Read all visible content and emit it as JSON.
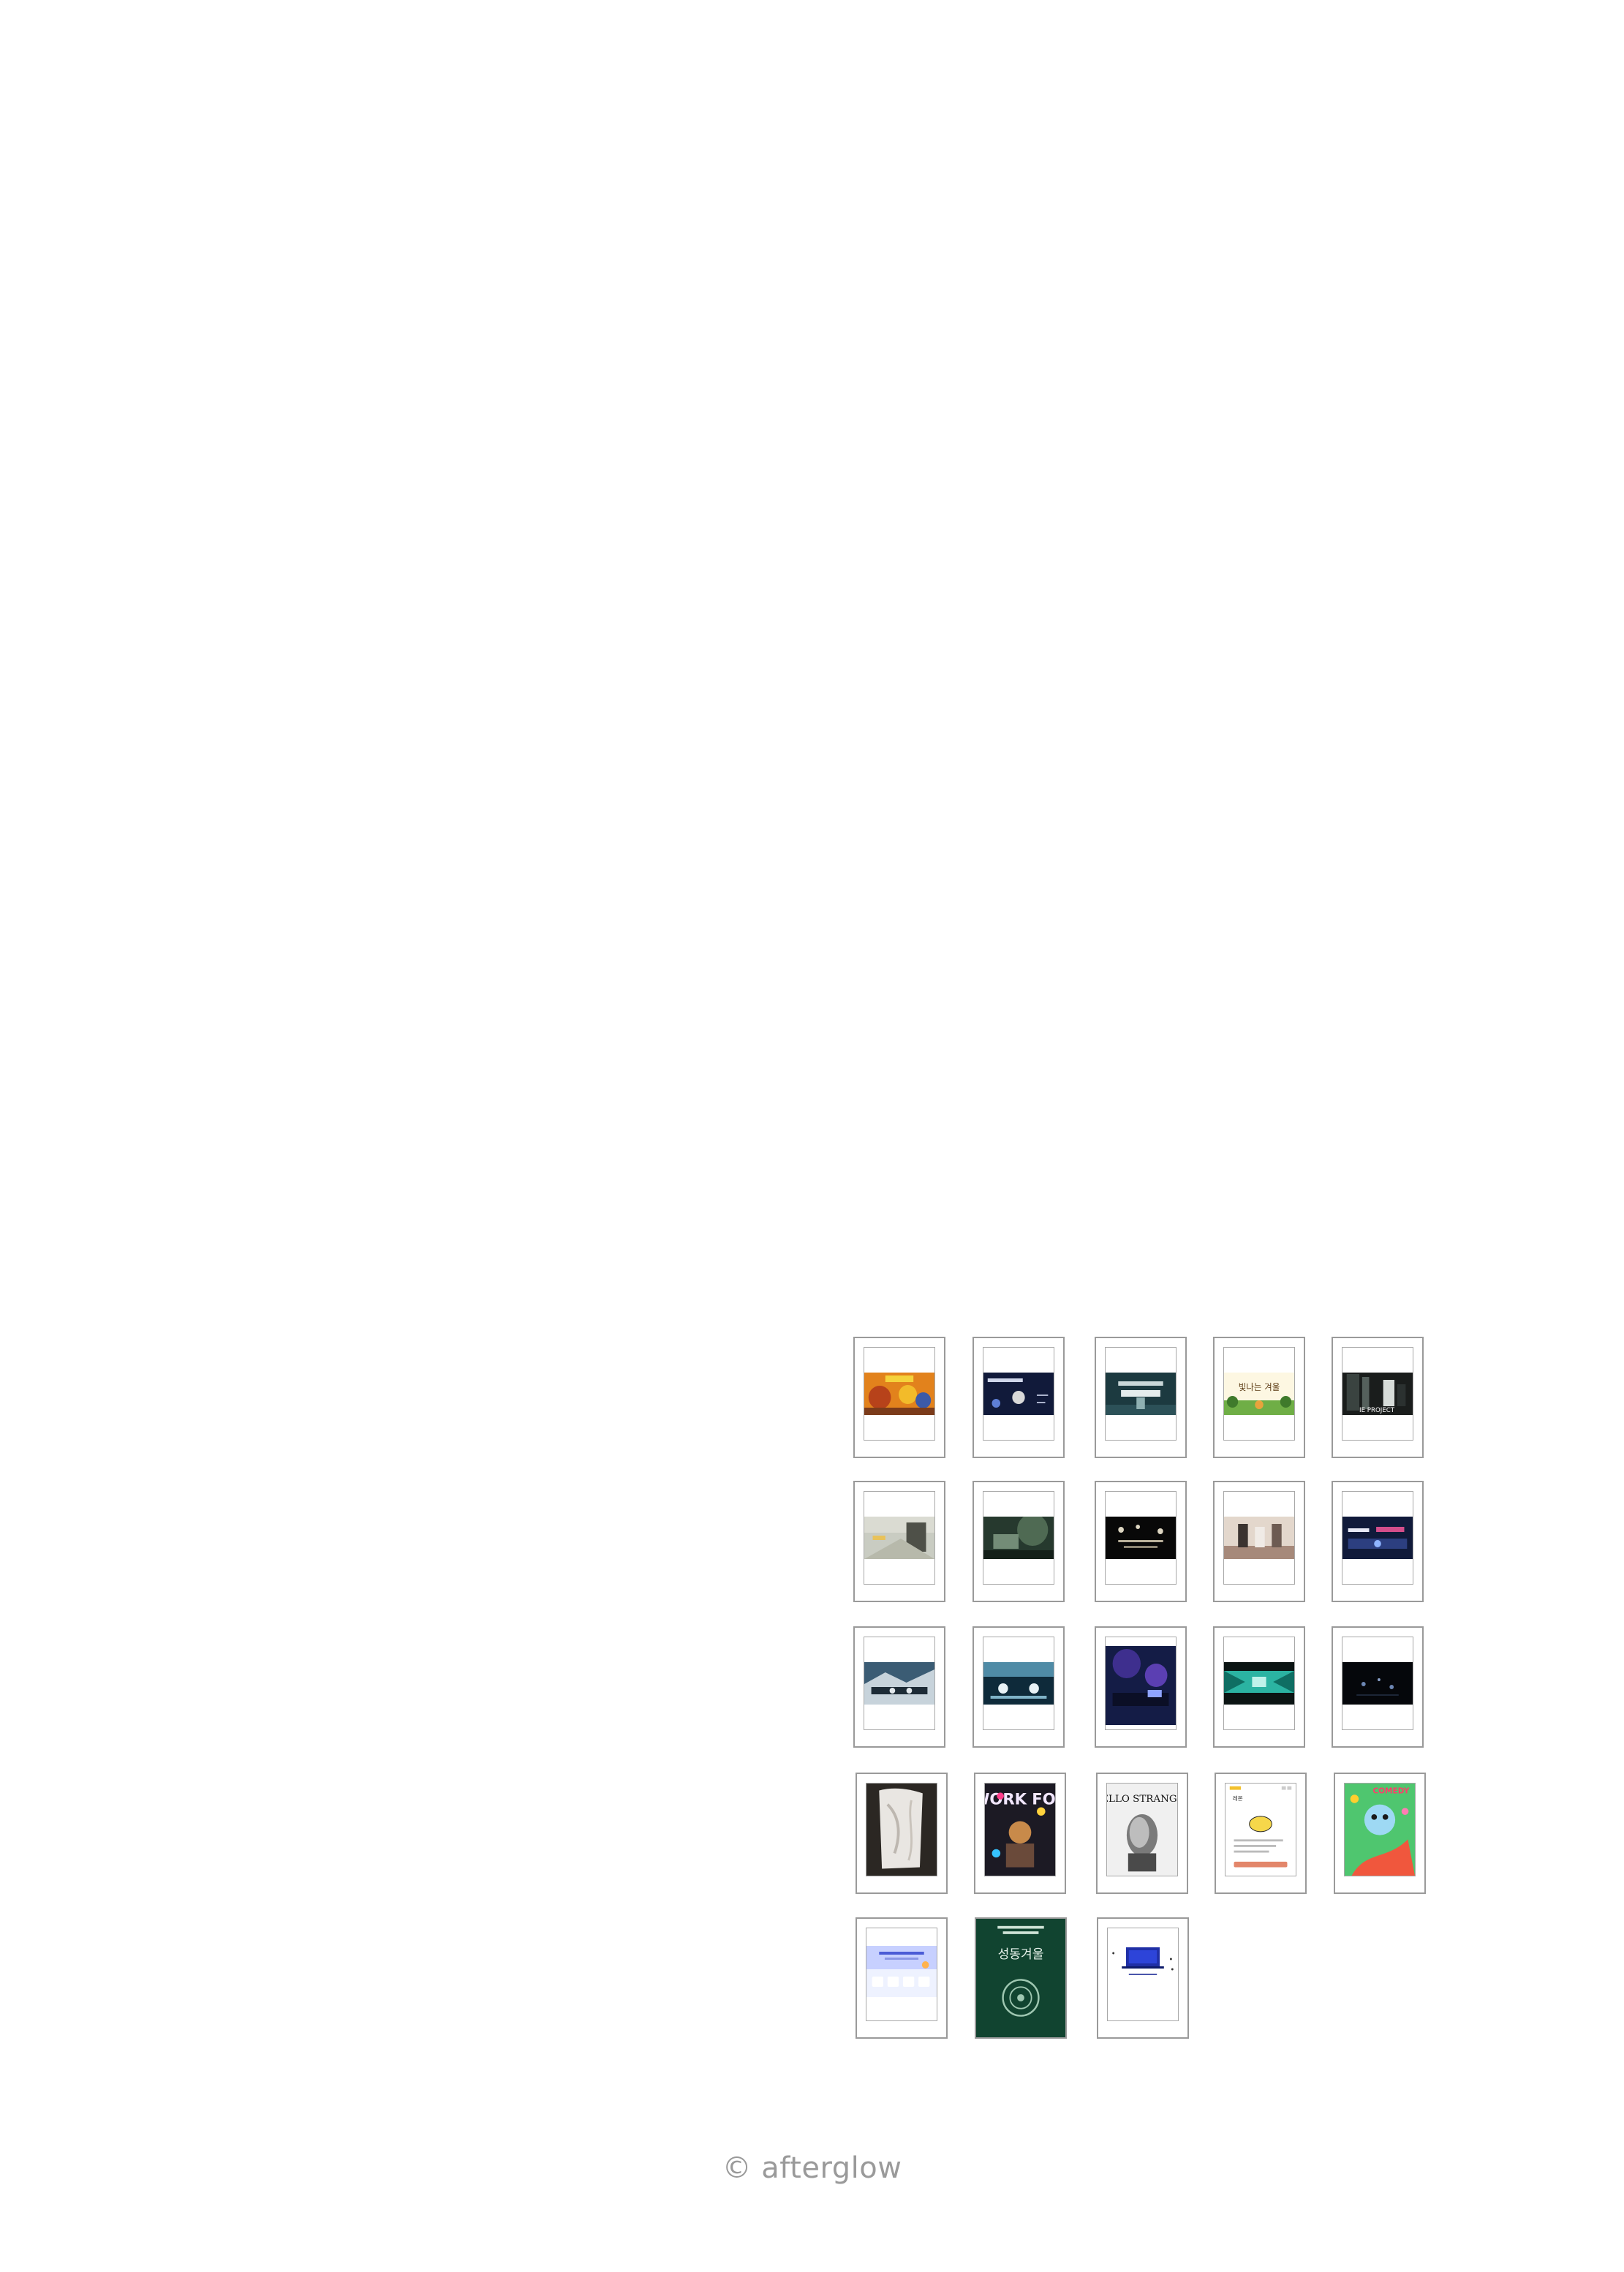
{
  "footer": {
    "copyright": "© afterglow"
  },
  "thumb_text": {
    "t4": "빛나는 겨울",
    "t5": "IE PROJECT",
    "t13": "",
    "t18": "WORK FOR",
    "t19": "HELLO STRANGER",
    "t20": "레몬",
    "t21": "COMEDY",
    "t23": "성동겨울"
  },
  "colors": {
    "card_border": "#9a9a9a",
    "inner_border": "#a8a8a8",
    "footer_text": "#9a9a9a"
  }
}
